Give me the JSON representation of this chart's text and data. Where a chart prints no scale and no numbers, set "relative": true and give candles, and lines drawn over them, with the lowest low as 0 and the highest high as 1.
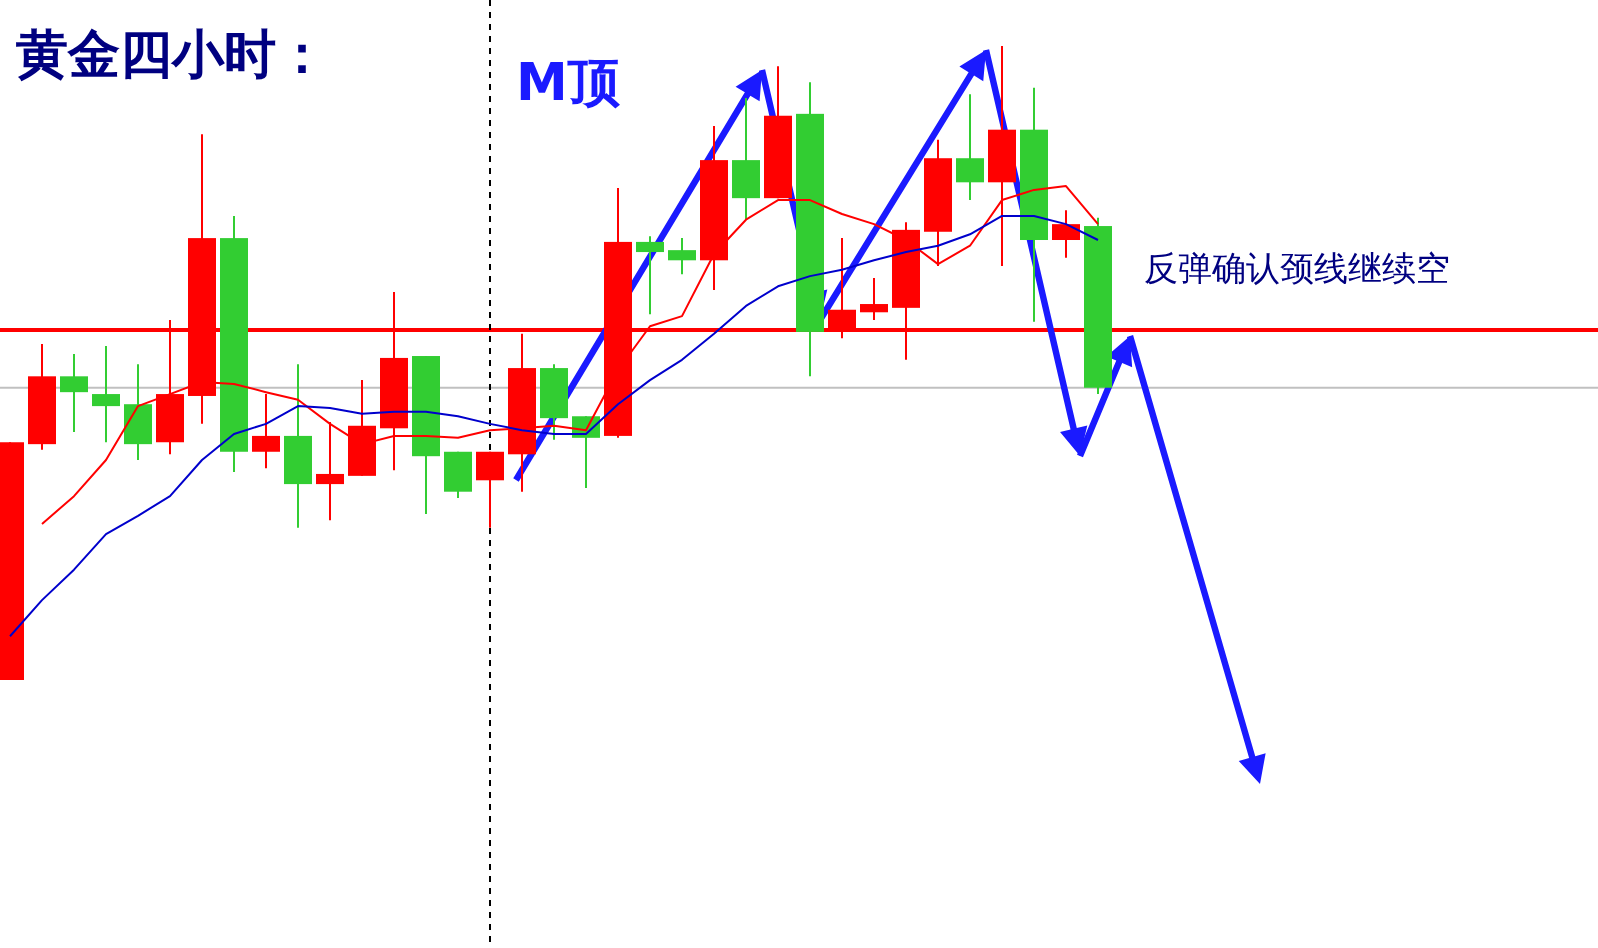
{
  "chart_data": {
    "type": "candlestick",
    "title": "黄金四小时：",
    "annotations": [
      "M顶",
      "反弹确认颈线继续空"
    ],
    "relative": true,
    "categories": [
      null,
      null,
      null,
      null,
      null,
      null,
      null,
      null,
      null,
      null,
      null,
      null,
      null,
      null,
      null,
      null,
      null,
      null,
      null,
      null,
      null,
      null,
      null,
      null,
      null,
      null,
      null,
      null,
      null,
      null,
      null,
      null,
      null,
      null,
      null,
      null,
      null,
      null,
      null,
      null,
      null,
      null,
      null,
      null,
      null,
      null,
      null,
      null,
      null,
      null
    ],
    "ohlc": [
      [
        0,
        0.375,
        0,
        0.375
      ],
      [
        0.372,
        0.53,
        0.363,
        0.479
      ],
      [
        0.479,
        0.514,
        0.391,
        0.454
      ],
      [
        0.451,
        0.527,
        0.375,
        0.432
      ],
      [
        0.435,
        0.498,
        0.347,
        0.372
      ],
      [
        0.375,
        0.568,
        0.356,
        0.451
      ],
      [
        0.448,
        0.861,
        0.404,
        0.697
      ],
      [
        0.697,
        0.732,
        0.328,
        0.36
      ],
      [
        0.36,
        0.451,
        0.334,
        0.385
      ],
      [
        0.385,
        0.498,
        0.24,
        0.309
      ],
      [
        0.309,
        0.407,
        0.252,
        0.325
      ],
      [
        0.322,
        0.473,
        0.322,
        0.401
      ],
      [
        0.397,
        0.612,
        0.331,
        0.508
      ],
      [
        0.511,
        0.511,
        0.262,
        0.353
      ],
      [
        0.36,
        0.36,
        0.287,
        0.297
      ],
      [
        0.315,
        0.36,
        0.24,
        0.36
      ],
      [
        0.356,
        0.546,
        0.297,
        0.492
      ],
      [
        0.492,
        0.498,
        0.379,
        0.413
      ],
      [
        0.416,
        0.416,
        0.303,
        0.382
      ],
      [
        0.385,
        0.776,
        0.382,
        0.691
      ],
      [
        0.691,
        0.7,
        0.577,
        0.675
      ],
      [
        0.678,
        0.697,
        0.64,
        0.662
      ],
      [
        0.662,
        0.874,
        0.615,
        0.82
      ],
      [
        0.82,
        0.918,
        0.726,
        0.76
      ],
      [
        0.76,
        0.968,
        0.76,
        0.89
      ],
      [
        0.893,
        0.943,
        0.479,
        0.549
      ],
      [
        0.549,
        0.697,
        0.539,
        0.584
      ],
      [
        0.58,
        0.634,
        0.568,
        0.593
      ],
      [
        0.587,
        0.722,
        0.505,
        0.71
      ],
      [
        0.707,
        0.852,
        0.653,
        0.823
      ],
      [
        0.823,
        0.924,
        0.757,
        0.785
      ],
      [
        0.785,
        1,
        0.653,
        0.868
      ],
      [
        0.868,
        0.934,
        0.565,
        0.694
      ],
      [
        0.694,
        0.741,
        0.666,
        0.719
      ],
      [
        0.716,
        0.729,
        0.451,
        0.461
      ],
      null,
      null,
      null,
      null,
      null,
      null,
      null,
      null,
      null,
      null,
      null,
      null,
      null,
      null,
      null
    ],
    "colors": [
      "#ff0000",
      "#ff0000",
      "#32cd32",
      "#32cd32",
      "#32cd32",
      "#ff0000",
      "#ff0000",
      "#32cd32",
      "#ff0000",
      "#32cd32",
      "#ff0000",
      "#ff0000",
      "#ff0000",
      "#32cd32",
      "#32cd32",
      "#ff0000",
      "#ff0000",
      "#32cd32",
      "#32cd32",
      "#ff0000",
      "#32cd32",
      "#32cd32",
      "#ff0000",
      "#32cd32",
      "#ff0000",
      "#32cd32",
      "#ff0000",
      "#ff0000",
      "#ff0000",
      "#ff0000",
      "#32cd32",
      "#ff0000",
      "#32cd32",
      "#ff0000",
      "#32cd32",
      null,
      null,
      null,
      null,
      null,
      null,
      null,
      null,
      null,
      null,
      null,
      null,
      null,
      null,
      null
    ],
    "series": [
      {
        "type": "line",
        "color": "#ff0000",
        "values": [
          null,
          0.246,
          0.29,
          0.347,
          0.432,
          0.451,
          0.47,
          0.467,
          0.454,
          0.442,
          0.404,
          0.372,
          0.385,
          0.385,
          0.382,
          0.394,
          0.397,
          0.401,
          0.394,
          0.489,
          0.558,
          0.574,
          0.672,
          0.726,
          0.757,
          0.757,
          0.735,
          0.719,
          0.694,
          0.656,
          0.685,
          0.757,
          0.773,
          0.779,
          0.719,
          null,
          null,
          null,
          null,
          null,
          null,
          null,
          null,
          null,
          null,
          null,
          null,
          null,
          null,
          null
        ]
      },
      {
        "type": "line",
        "color": "#0000cc",
        "values": [
          0.069,
          0.126,
          0.174,
          0.23,
          0.259,
          0.29,
          0.347,
          0.388,
          0.404,
          0.432,
          0.429,
          0.42,
          0.423,
          0.423,
          0.416,
          0.404,
          0.394,
          0.388,
          0.388,
          0.435,
          0.473,
          0.505,
          0.546,
          0.59,
          0.621,
          0.637,
          0.647,
          0.662,
          0.675,
          0.685,
          0.703,
          0.732,
          0.732,
          0.719,
          0.694,
          null,
          null,
          null,
          null,
          null,
          null,
          null,
          null,
          null,
          null,
          null,
          null,
          null,
          null,
          null
        ]
      }
    ],
    "ref_lines": [
      {
        "axis": "y",
        "value": 0.552,
        "color": "#ff0000",
        "line_style": "solid"
      },
      {
        "axis": "y",
        "value": 0.461,
        "color": "#c0c0c0",
        "line_style": "solid"
      }
    ]
  }
}
